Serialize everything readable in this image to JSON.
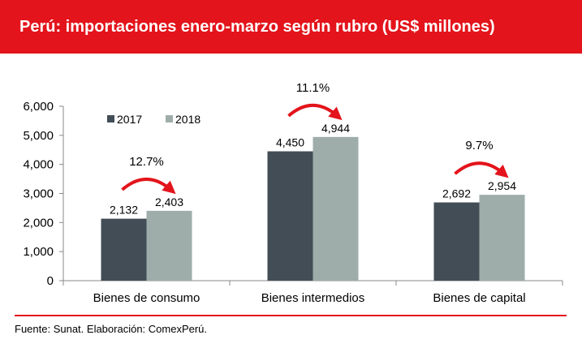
{
  "header": {
    "title": "Perú: importaciones enero-marzo según rubro (US$ millones)"
  },
  "footer": {
    "source": "Fuente: Sunat. Elaboración: ComexPerú."
  },
  "colors": {
    "accent": "#e3141b",
    "series_2017": "#434d56",
    "series_2018": "#9eadaa",
    "arrow": "#e3141b"
  },
  "chart_data": {
    "type": "bar",
    "title": "Perú: importaciones enero-marzo según rubro (US$ millones)",
    "categories": [
      "Bienes de consumo",
      "Bienes intermedios",
      "Bienes de capital"
    ],
    "series": [
      {
        "name": "2017",
        "values": [
          2132,
          4450,
          2692
        ],
        "labels": [
          "2,132",
          "4,450",
          "2,692"
        ]
      },
      {
        "name": "2018",
        "values": [
          2403,
          4944,
          2954
        ],
        "labels": [
          "2,403",
          "4,944",
          "2,954"
        ]
      }
    ],
    "growth_labels": [
      "12.7%",
      "11.1%",
      "9.7%"
    ],
    "ylim": [
      0,
      6000
    ],
    "yticks": [
      0,
      1000,
      2000,
      3000,
      4000,
      5000,
      6000
    ],
    "ytick_labels": [
      "0",
      "1,000",
      "2,000",
      "3,000",
      "4,000",
      "5,000",
      "6,000"
    ],
    "grid": false,
    "legend": "top-left"
  }
}
